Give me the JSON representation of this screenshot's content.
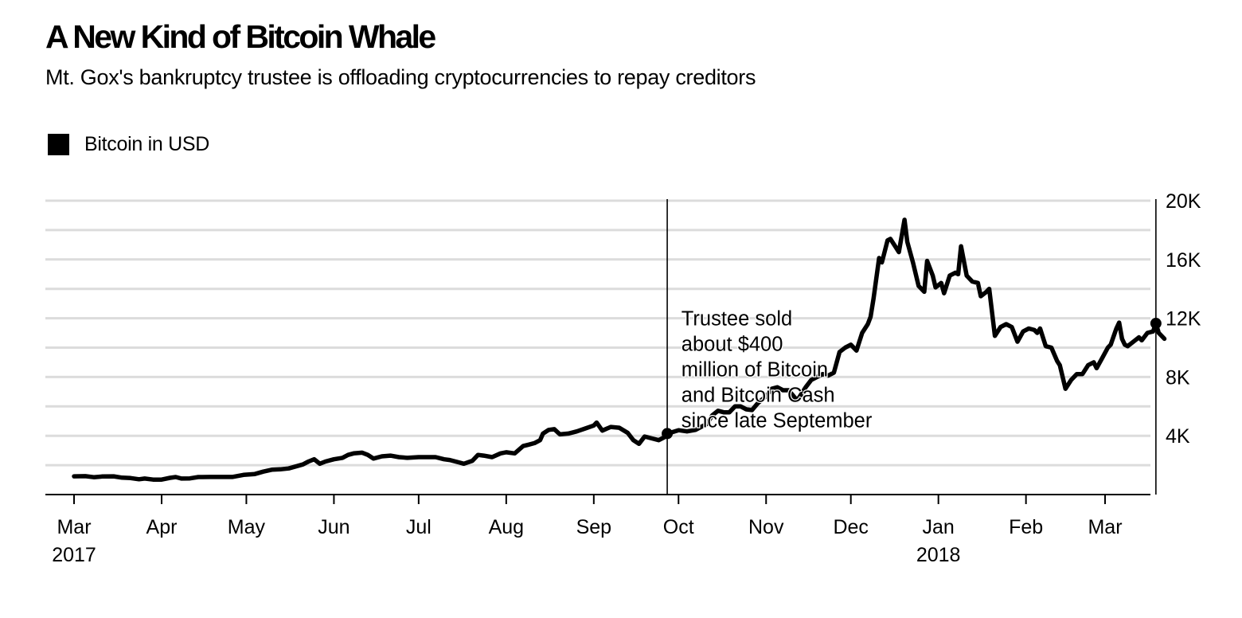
{
  "header": {
    "title": "A New Kind of Bitcoin Whale",
    "subtitle": "Mt. Gox's bankruptcy trustee is offloading cryptocurrencies to repay creditors"
  },
  "chart_data": {
    "type": "line",
    "title": "A New Kind of Bitcoin Whale",
    "subtitle": "Mt. Gox's bankruptcy trustee is offloading cryptocurrencies to repay creditors",
    "xlabel": "",
    "ylabel": "",
    "ylim": [
      0,
      20000
    ],
    "xlim": [
      "2017-02-28",
      "2018-03-09"
    ],
    "grid": true,
    "y_axis_side": "right",
    "legend_position": "top-left",
    "colors": {
      "line": "#000000",
      "grid": "#dcdcdc",
      "axis": "#000000",
      "background": "#ffffff"
    },
    "y_ticks": [
      {
        "value": 2000,
        "label": ""
      },
      {
        "value": 4000,
        "label": "4K"
      },
      {
        "value": 6000,
        "label": ""
      },
      {
        "value": 8000,
        "label": "8K"
      },
      {
        "value": 10000,
        "label": ""
      },
      {
        "value": 12000,
        "label": "12K"
      },
      {
        "value": 14000,
        "label": ""
      },
      {
        "value": 16000,
        "label": "16K"
      },
      {
        "value": 18000,
        "label": ""
      },
      {
        "value": 20000,
        "label": "20K"
      }
    ],
    "x_ticks": [
      {
        "date": "2017-03-01",
        "label": "Mar",
        "year": "2017"
      },
      {
        "date": "2017-04-01",
        "label": "Apr",
        "year": ""
      },
      {
        "date": "2017-05-01",
        "label": "May",
        "year": ""
      },
      {
        "date": "2017-06-01",
        "label": "Jun",
        "year": ""
      },
      {
        "date": "2017-07-01",
        "label": "Jul",
        "year": ""
      },
      {
        "date": "2017-08-01",
        "label": "Aug",
        "year": ""
      },
      {
        "date": "2017-09-01",
        "label": "Sep",
        "year": ""
      },
      {
        "date": "2017-10-01",
        "label": "Oct",
        "year": ""
      },
      {
        "date": "2017-11-01",
        "label": "Nov",
        "year": ""
      },
      {
        "date": "2017-12-01",
        "label": "Dec",
        "year": ""
      },
      {
        "date": "2018-01-01",
        "label": "Jan",
        "year": "2018"
      },
      {
        "date": "2018-02-01",
        "label": "Feb",
        "year": ""
      },
      {
        "date": "2018-03-01",
        "label": "Mar",
        "year": ""
      }
    ],
    "series": [
      {
        "name": "Bitcoin in USD",
        "color": "#000000",
        "points": [
          [
            "2017-03-01",
            1240
          ],
          [
            "2017-03-05",
            1250
          ],
          [
            "2017-03-08",
            1180
          ],
          [
            "2017-03-11",
            1230
          ],
          [
            "2017-03-15",
            1240
          ],
          [
            "2017-03-18",
            1150
          ],
          [
            "2017-03-21",
            1120
          ],
          [
            "2017-03-24",
            1040
          ],
          [
            "2017-03-26",
            1090
          ],
          [
            "2017-03-29",
            1020
          ],
          [
            "2017-04-01",
            1020
          ],
          [
            "2017-04-04",
            1140
          ],
          [
            "2017-04-06",
            1190
          ],
          [
            "2017-04-08",
            1090
          ],
          [
            "2017-04-11",
            1100
          ],
          [
            "2017-04-14",
            1190
          ],
          [
            "2017-04-18",
            1200
          ],
          [
            "2017-04-22",
            1200
          ],
          [
            "2017-04-26",
            1200
          ],
          [
            "2017-04-30",
            1340
          ],
          [
            "2017-05-04",
            1400
          ],
          [
            "2017-05-07",
            1560
          ],
          [
            "2017-05-10",
            1690
          ],
          [
            "2017-05-13",
            1720
          ],
          [
            "2017-05-16",
            1780
          ],
          [
            "2017-05-19",
            1940
          ],
          [
            "2017-05-21",
            2050
          ],
          [
            "2017-05-23",
            2250
          ],
          [
            "2017-05-25",
            2400
          ],
          [
            "2017-05-27",
            2100
          ],
          [
            "2017-05-29",
            2250
          ],
          [
            "2017-06-01",
            2400
          ],
          [
            "2017-06-04",
            2500
          ],
          [
            "2017-06-06",
            2700
          ],
          [
            "2017-06-08",
            2800
          ],
          [
            "2017-06-11",
            2850
          ],
          [
            "2017-06-13",
            2700
          ],
          [
            "2017-06-15",
            2450
          ],
          [
            "2017-06-18",
            2600
          ],
          [
            "2017-06-21",
            2650
          ],
          [
            "2017-06-24",
            2550
          ],
          [
            "2017-06-27",
            2500
          ],
          [
            "2017-07-01",
            2550
          ],
          [
            "2017-07-04",
            2550
          ],
          [
            "2017-07-07",
            2550
          ],
          [
            "2017-07-10",
            2400
          ],
          [
            "2017-07-12",
            2350
          ],
          [
            "2017-07-15",
            2200
          ],
          [
            "2017-07-17",
            2100
          ],
          [
            "2017-07-20",
            2300
          ],
          [
            "2017-07-22",
            2700
          ],
          [
            "2017-07-24",
            2650
          ],
          [
            "2017-07-27",
            2550
          ],
          [
            "2017-07-30",
            2800
          ],
          [
            "2017-08-01",
            2880
          ],
          [
            "2017-08-04",
            2800
          ],
          [
            "2017-08-07",
            3300
          ],
          [
            "2017-08-09",
            3400
          ],
          [
            "2017-08-11",
            3500
          ],
          [
            "2017-08-13",
            3700
          ],
          [
            "2017-08-14",
            4150
          ],
          [
            "2017-08-16",
            4400
          ],
          [
            "2017-08-18",
            4450
          ],
          [
            "2017-08-20",
            4100
          ],
          [
            "2017-08-23",
            4150
          ],
          [
            "2017-08-26",
            4300
          ],
          [
            "2017-08-29",
            4500
          ],
          [
            "2017-09-01",
            4700
          ],
          [
            "2017-09-02",
            4900
          ],
          [
            "2017-09-04",
            4350
          ],
          [
            "2017-09-07",
            4600
          ],
          [
            "2017-09-10",
            4550
          ],
          [
            "2017-09-13",
            4200
          ],
          [
            "2017-09-15",
            3700
          ],
          [
            "2017-09-17",
            3450
          ],
          [
            "2017-09-19",
            3950
          ],
          [
            "2017-09-22",
            3800
          ],
          [
            "2017-09-24",
            3700
          ],
          [
            "2017-09-26",
            3900
          ],
          [
            "2017-09-28",
            4200
          ],
          [
            "2017-10-01",
            4380
          ],
          [
            "2017-10-04",
            4300
          ],
          [
            "2017-10-07",
            4400
          ],
          [
            "2017-10-09",
            4600
          ],
          [
            "2017-10-11",
            4800
          ],
          [
            "2017-10-13",
            5400
          ],
          [
            "2017-10-15",
            5700
          ],
          [
            "2017-10-17",
            5600
          ],
          [
            "2017-10-19",
            5600
          ],
          [
            "2017-10-21",
            6000
          ],
          [
            "2017-10-23",
            6000
          ],
          [
            "2017-10-25",
            5800
          ],
          [
            "2017-10-27",
            5750
          ],
          [
            "2017-10-29",
            6200
          ],
          [
            "2017-11-01",
            6700
          ],
          [
            "2017-11-03",
            7200
          ],
          [
            "2017-11-05",
            7300
          ],
          [
            "2017-11-07",
            7100
          ],
          [
            "2017-11-09",
            7100
          ],
          [
            "2017-11-12",
            6400
          ],
          [
            "2017-11-15",
            7300
          ],
          [
            "2017-11-17",
            7800
          ],
          [
            "2017-11-19",
            8000
          ],
          [
            "2017-11-21",
            8200
          ],
          [
            "2017-11-23",
            8100
          ],
          [
            "2017-11-25",
            8300
          ],
          [
            "2017-11-27",
            9700
          ],
          [
            "2017-11-29",
            10000
          ],
          [
            "2017-12-01",
            10200
          ],
          [
            "2017-12-03",
            9800
          ],
          [
            "2017-12-05",
            11000
          ],
          [
            "2017-12-07",
            11600
          ],
          [
            "2017-12-08",
            12100
          ],
          [
            "2017-12-09",
            13300
          ],
          [
            "2017-12-11",
            16100
          ],
          [
            "2017-12-12",
            15800
          ],
          [
            "2017-12-14",
            17300
          ],
          [
            "2017-12-15",
            17400
          ],
          [
            "2017-12-17",
            16800
          ],
          [
            "2017-12-18",
            16500
          ],
          [
            "2017-12-20",
            18700
          ],
          [
            "2017-12-21",
            17200
          ],
          [
            "2017-12-23",
            15800
          ],
          [
            "2017-12-25",
            14200
          ],
          [
            "2017-12-27",
            13800
          ],
          [
            "2017-12-28",
            15900
          ],
          [
            "2017-12-30",
            14900
          ],
          [
            "2017-12-31",
            14100
          ],
          [
            "2018-01-02",
            14400
          ],
          [
            "2018-01-03",
            13700
          ],
          [
            "2018-01-05",
            14900
          ],
          [
            "2018-01-07",
            15100
          ],
          [
            "2018-01-08",
            15000
          ],
          [
            "2018-01-09",
            16900
          ],
          [
            "2018-01-11",
            14900
          ],
          [
            "2018-01-13",
            14500
          ],
          [
            "2018-01-15",
            14400
          ],
          [
            "2018-01-16",
            13500
          ],
          [
            "2018-01-18",
            13800
          ],
          [
            "2018-01-19",
            14000
          ],
          [
            "2018-01-21",
            10800
          ],
          [
            "2018-01-23",
            11400
          ],
          [
            "2018-01-25",
            11600
          ],
          [
            "2018-01-27",
            11400
          ],
          [
            "2018-01-29",
            10400
          ],
          [
            "2018-01-31",
            11100
          ],
          [
            "2018-02-02",
            11300
          ],
          [
            "2018-02-04",
            11200
          ],
          [
            "2018-02-05",
            11000
          ],
          [
            "2018-02-06",
            11300
          ],
          [
            "2018-02-08",
            10100
          ],
          [
            "2018-02-10",
            10000
          ],
          [
            "2018-02-12",
            9100
          ],
          [
            "2018-02-13",
            8800
          ],
          [
            "2018-02-15",
            7200
          ],
          [
            "2018-02-17",
            7800
          ],
          [
            "2018-02-19",
            8200
          ],
          [
            "2018-02-21",
            8200
          ],
          [
            "2018-02-23",
            8800
          ],
          [
            "2018-02-25",
            9000
          ],
          [
            "2018-02-26",
            8600
          ],
          [
            "2018-02-28",
            9300
          ],
          [
            "2018-03-02",
            10000
          ],
          [
            "2018-03-03",
            10200
          ],
          [
            "2018-03-05",
            11300
          ],
          [
            "2018-03-06",
            11700
          ],
          [
            "2018-03-07",
            10600
          ],
          [
            "2018-03-08",
            10200
          ],
          [
            "2018-03-09",
            10100
          ],
          [
            "2018-03-11",
            10400
          ],
          [
            "2018-03-13",
            10700
          ],
          [
            "2018-03-14",
            10500
          ],
          [
            "2018-03-16",
            11000
          ],
          [
            "2018-03-18",
            11100
          ],
          [
            "2018-03-19",
            11650
          ],
          [
            "2018-03-20",
            11000
          ],
          [
            "2018-03-22",
            10600
          ]
        ]
      }
    ],
    "reference_lines": [
      {
        "date": "2017-09-27",
        "marker_value": 4150
      },
      {
        "date": "2018-03-19",
        "marker_value": 11650
      }
    ],
    "annotations": [
      {
        "lines": [
          "Trustee sold",
          "about $400",
          "million of Bitcoin",
          "and Bitcoin Cash",
          "since late September"
        ],
        "anchor_date": "2017-10-02",
        "anchor_value": 11400
      }
    ]
  },
  "legend": {
    "items": [
      {
        "label": "Bitcoin in USD",
        "color": "#000000"
      }
    ]
  }
}
